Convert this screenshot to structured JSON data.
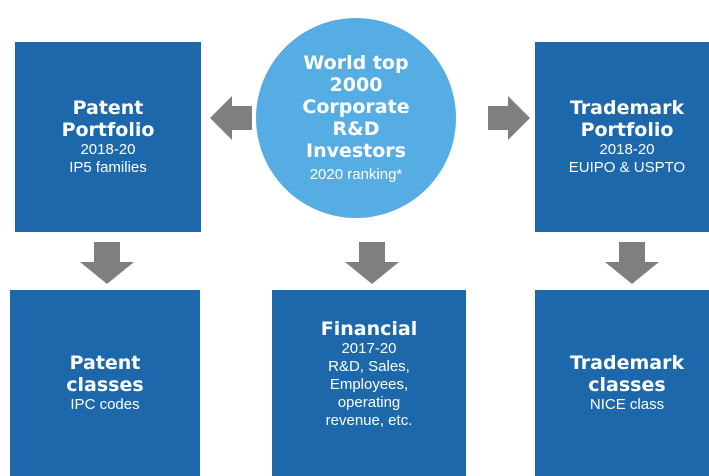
{
  "nodes": [
    {
      "title": [
        "Patent",
        "Portfolio"
      ],
      "details": [
        "2018-20",
        "IP5 families"
      ]
    },
    {
      "title": [
        "World top",
        "2000",
        "Corporate",
        "R&D",
        "Investors"
      ],
      "details": [
        "2020 ranking*"
      ]
    },
    {
      "title": [
        "Trademark",
        "Portfolio"
      ],
      "details": [
        "2018-20",
        "EUIPO & USPTO"
      ]
    },
    {
      "title": [
        "Patent",
        "classes"
      ],
      "details": [
        "IPC codes"
      ]
    },
    {
      "title": [
        "Financial"
      ],
      "details": [
        "2017-20",
        "R&D, Sales,",
        "Employees,",
        "operating",
        "revenue, etc."
      ]
    },
    {
      "title": [
        "Trademark",
        "classes"
      ],
      "details": [
        "NICE class"
      ]
    }
  ]
}
